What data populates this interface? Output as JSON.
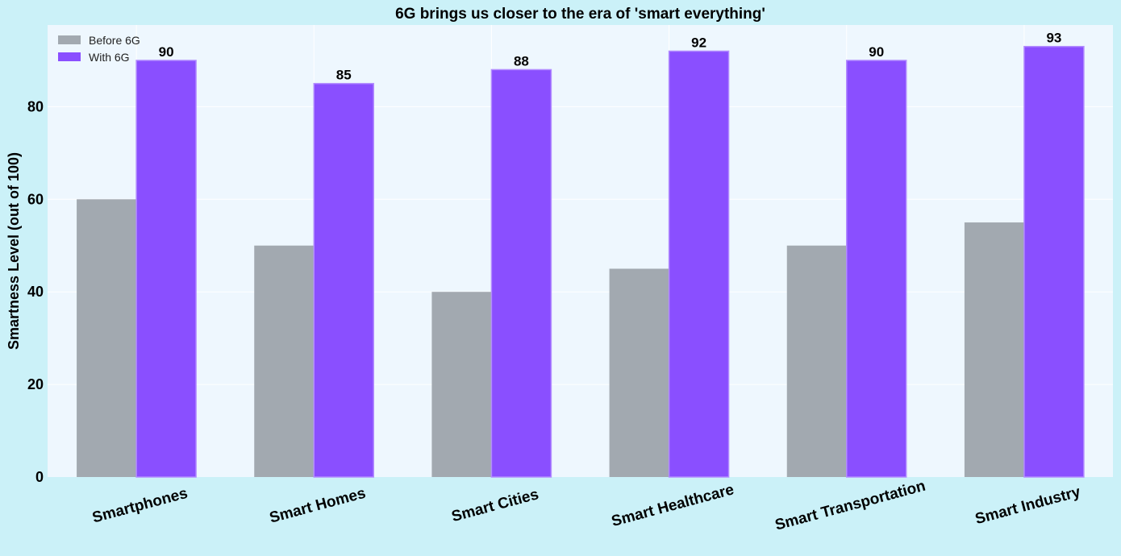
{
  "chart_data": {
    "type": "bar",
    "title": "6G brings us closer to the era of 'smart everything'",
    "xlabel": "",
    "ylabel": "Smartness Level (out of 100)",
    "ylim": [
      0,
      97.65
    ],
    "yticks": [
      0,
      20,
      40,
      60,
      80
    ],
    "grid": true,
    "legend_position": "top-left",
    "categories": [
      "Smartphones",
      "Smart Homes",
      "Smart Cities",
      "Smart Healthcare",
      "Smart Transportation",
      "Smart Industry"
    ],
    "series": [
      {
        "name": "Before 6G",
        "values": [
          60,
          50,
          40,
          45,
          50,
          55
        ],
        "color": "#a2a9b0",
        "show_labels": false
      },
      {
        "name": "With 6G",
        "values": [
          90,
          85,
          88,
          92,
          90,
          93
        ],
        "color": "#8a4fff",
        "edge_color": "#b38dff",
        "show_labels": true
      }
    ],
    "colors": {
      "page_background": "#cbf1f8",
      "plot_background": "#eef7fe",
      "grid": "#ffffff"
    }
  }
}
